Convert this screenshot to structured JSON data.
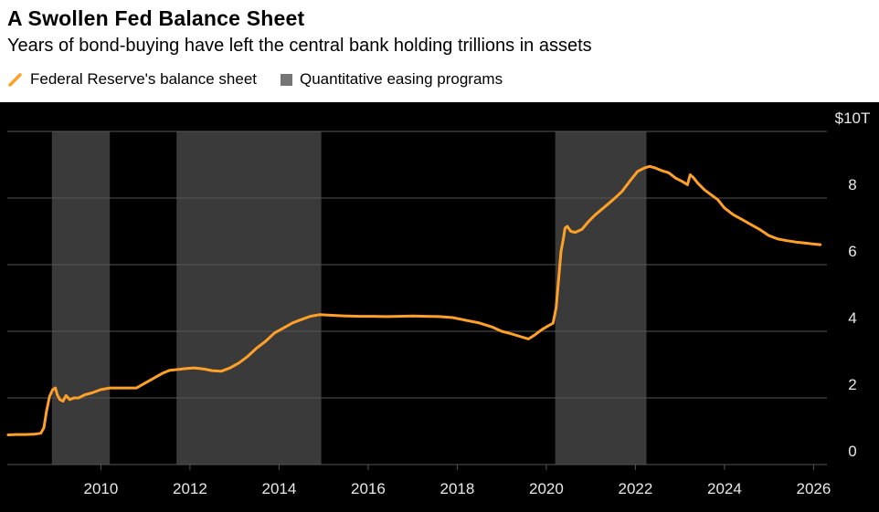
{
  "header": {
    "title": "A Swollen Fed Balance Sheet",
    "subtitle": "Years of bond-buying have left the central bank holding trillions in assets"
  },
  "legend": {
    "items": [
      {
        "label": "Federal Reserve's balance sheet",
        "marker": "orange-slash"
      },
      {
        "label": "Quantitative easing programs",
        "marker": "gray-square"
      }
    ]
  },
  "chart_data": {
    "type": "line",
    "title": "A Swollen Fed Balance Sheet",
    "subtitle": "Years of bond-buying have left the central bank holding trillions in assets",
    "unit": "USD trillions",
    "grid": true,
    "legend_position": "top",
    "x_domain": [
      2007.9,
      2026.3
    ],
    "y_domain": [
      0,
      10
    ],
    "x_ticks": [
      2010,
      2012,
      2014,
      2016,
      2018,
      2020,
      2022,
      2024,
      2026
    ],
    "y_ticks": [
      {
        "value": 0,
        "label": "0"
      },
      {
        "value": 2,
        "label": "2"
      },
      {
        "value": 4,
        "label": "4"
      },
      {
        "value": 6,
        "label": "6"
      },
      {
        "value": 8,
        "label": "8"
      },
      {
        "value": 10,
        "label": "$10T"
      }
    ],
    "qe_bands": [
      {
        "start": 2008.9,
        "end": 2010.2
      },
      {
        "start": 2011.7,
        "end": 2014.95
      },
      {
        "start": 2020.2,
        "end": 2022.25
      }
    ],
    "series": [
      {
        "name": "Federal Reserve's balance sheet",
        "points": [
          [
            2007.92,
            0.89
          ],
          [
            2008.1,
            0.9
          ],
          [
            2008.3,
            0.9
          ],
          [
            2008.5,
            0.91
          ],
          [
            2008.65,
            0.94
          ],
          [
            2008.72,
            1.1
          ],
          [
            2008.78,
            1.6
          ],
          [
            2008.85,
            2.05
          ],
          [
            2008.92,
            2.25
          ],
          [
            2008.98,
            2.3
          ],
          [
            2009.02,
            2.1
          ],
          [
            2009.08,
            1.95
          ],
          [
            2009.15,
            1.9
          ],
          [
            2009.22,
            2.07
          ],
          [
            2009.3,
            1.95
          ],
          [
            2009.4,
            2.0
          ],
          [
            2009.5,
            2.0
          ],
          [
            2009.65,
            2.1
          ],
          [
            2009.8,
            2.15
          ],
          [
            2010.0,
            2.25
          ],
          [
            2010.2,
            2.3
          ],
          [
            2010.4,
            2.3
          ],
          [
            2010.6,
            2.3
          ],
          [
            2010.8,
            2.3
          ],
          [
            2011.0,
            2.45
          ],
          [
            2011.2,
            2.6
          ],
          [
            2011.4,
            2.75
          ],
          [
            2011.55,
            2.83
          ],
          [
            2011.7,
            2.85
          ],
          [
            2011.9,
            2.88
          ],
          [
            2012.1,
            2.9
          ],
          [
            2012.3,
            2.87
          ],
          [
            2012.5,
            2.82
          ],
          [
            2012.7,
            2.8
          ],
          [
            2012.9,
            2.9
          ],
          [
            2013.1,
            3.05
          ],
          [
            2013.3,
            3.25
          ],
          [
            2013.5,
            3.5
          ],
          [
            2013.7,
            3.7
          ],
          [
            2013.9,
            3.95
          ],
          [
            2014.1,
            4.1
          ],
          [
            2014.3,
            4.25
          ],
          [
            2014.5,
            4.35
          ],
          [
            2014.7,
            4.45
          ],
          [
            2014.9,
            4.5
          ],
          [
            2015.2,
            4.48
          ],
          [
            2015.5,
            4.46
          ],
          [
            2015.8,
            4.45
          ],
          [
            2016.1,
            4.45
          ],
          [
            2016.4,
            4.44
          ],
          [
            2016.7,
            4.45
          ],
          [
            2017.0,
            4.46
          ],
          [
            2017.3,
            4.45
          ],
          [
            2017.6,
            4.44
          ],
          [
            2017.9,
            4.41
          ],
          [
            2018.2,
            4.33
          ],
          [
            2018.5,
            4.25
          ],
          [
            2018.8,
            4.12
          ],
          [
            2019.0,
            4.0
          ],
          [
            2019.2,
            3.93
          ],
          [
            2019.4,
            3.85
          ],
          [
            2019.6,
            3.77
          ],
          [
            2019.75,
            3.9
          ],
          [
            2019.9,
            4.05
          ],
          [
            2020.05,
            4.17
          ],
          [
            2020.15,
            4.24
          ],
          [
            2020.22,
            4.7
          ],
          [
            2020.28,
            5.6
          ],
          [
            2020.33,
            6.4
          ],
          [
            2020.38,
            6.75
          ],
          [
            2020.42,
            7.1
          ],
          [
            2020.47,
            7.15
          ],
          [
            2020.55,
            7.0
          ],
          [
            2020.65,
            6.97
          ],
          [
            2020.8,
            7.06
          ],
          [
            2020.95,
            7.3
          ],
          [
            2021.1,
            7.5
          ],
          [
            2021.3,
            7.72
          ],
          [
            2021.5,
            7.95
          ],
          [
            2021.7,
            8.2
          ],
          [
            2021.9,
            8.55
          ],
          [
            2022.05,
            8.8
          ],
          [
            2022.2,
            8.9
          ],
          [
            2022.32,
            8.95
          ],
          [
            2022.45,
            8.9
          ],
          [
            2022.6,
            8.82
          ],
          [
            2022.75,
            8.76
          ],
          [
            2022.9,
            8.6
          ],
          [
            2023.05,
            8.5
          ],
          [
            2023.17,
            8.4
          ],
          [
            2023.23,
            8.7
          ],
          [
            2023.3,
            8.62
          ],
          [
            2023.4,
            8.45
          ],
          [
            2023.55,
            8.25
          ],
          [
            2023.7,
            8.1
          ],
          [
            2023.85,
            7.95
          ],
          [
            2024.0,
            7.7
          ],
          [
            2024.2,
            7.5
          ],
          [
            2024.4,
            7.35
          ],
          [
            2024.6,
            7.2
          ],
          [
            2024.8,
            7.05
          ],
          [
            2025.0,
            6.87
          ],
          [
            2025.2,
            6.77
          ],
          [
            2025.4,
            6.72
          ],
          [
            2025.6,
            6.68
          ],
          [
            2025.8,
            6.65
          ],
          [
            2026.0,
            6.62
          ],
          [
            2026.15,
            6.6
          ]
        ]
      }
    ],
    "colors": {
      "line": "#ffa028",
      "qe_band": "#3a3a3a",
      "qe_band_legend": "#757575",
      "grid": "#555555",
      "axis_text": "#e8e8e8",
      "chart_background": "#000000",
      "header_background": "#ffffff",
      "header_text": "#000000"
    }
  }
}
